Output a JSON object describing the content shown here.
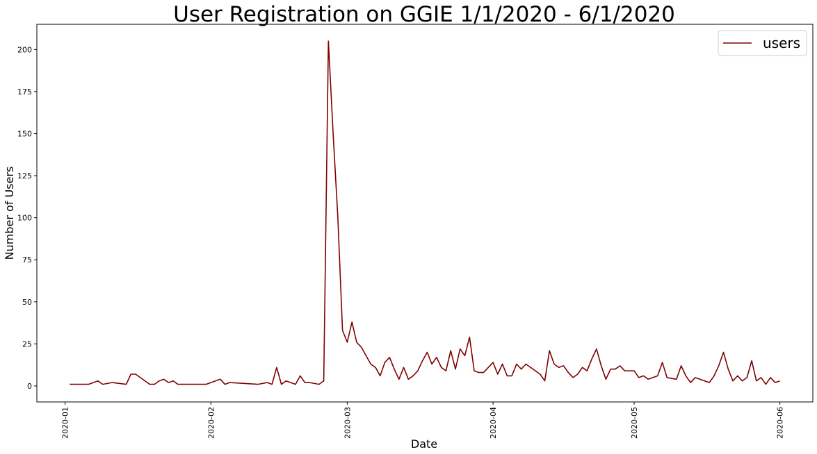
{
  "chart_data": {
    "type": "line",
    "title": "User Registration on GGIE 1/1/2020 - 6/1/2020",
    "xlabel": "Date",
    "ylabel": "Number of Users",
    "xlim": [
      "2019-12-26",
      "2020-06-08"
    ],
    "ylim": [
      -9.5,
      215
    ],
    "x_ticks": [
      "2020-01",
      "2020-02",
      "2020-03",
      "2020-04",
      "2020-05",
      "2020-06"
    ],
    "x_tick_dates": [
      "2020-01-01",
      "2020-02-01",
      "2020-03-01",
      "2020-04-01",
      "2020-05-01",
      "2020-06-01"
    ],
    "y_ticks": [
      0,
      25,
      50,
      75,
      100,
      125,
      150,
      175,
      200
    ],
    "grid": false,
    "legend_position": "top-right",
    "series": [
      {
        "name": "users",
        "color": "#800000",
        "points": [
          [
            "2020-01-02",
            1
          ],
          [
            "2020-01-06",
            1
          ],
          [
            "2020-01-08",
            3
          ],
          [
            "2020-01-09",
            1
          ],
          [
            "2020-01-11",
            2
          ],
          [
            "2020-01-14",
            1
          ],
          [
            "2020-01-15",
            7
          ],
          [
            "2020-01-16",
            7
          ],
          [
            "2020-01-19",
            1
          ],
          [
            "2020-01-20",
            1
          ],
          [
            "2020-01-21",
            3
          ],
          [
            "2020-01-22",
            4
          ],
          [
            "2020-01-23",
            2
          ],
          [
            "2020-01-24",
            3
          ],
          [
            "2020-01-25",
            1
          ],
          [
            "2020-01-31",
            1
          ],
          [
            "2020-02-03",
            4
          ],
          [
            "2020-02-04",
            1
          ],
          [
            "2020-02-05",
            2
          ],
          [
            "2020-02-11",
            1
          ],
          [
            "2020-02-13",
            2
          ],
          [
            "2020-02-14",
            1
          ],
          [
            "2020-02-15",
            11
          ],
          [
            "2020-02-16",
            1
          ],
          [
            "2020-02-17",
            3
          ],
          [
            "2020-02-19",
            1
          ],
          [
            "2020-02-20",
            6
          ],
          [
            "2020-02-21",
            2
          ],
          [
            "2020-02-22",
            2
          ],
          [
            "2020-02-24",
            1
          ],
          [
            "2020-02-25",
            3
          ],
          [
            "2020-02-26",
            205
          ],
          [
            "2020-02-27",
            150
          ],
          [
            "2020-02-28",
            100
          ],
          [
            "2020-02-29",
            33
          ],
          [
            "2020-03-01",
            26
          ],
          [
            "2020-03-02",
            38
          ],
          [
            "2020-03-03",
            26
          ],
          [
            "2020-03-04",
            23
          ],
          [
            "2020-03-06",
            13
          ],
          [
            "2020-03-07",
            11
          ],
          [
            "2020-03-08",
            6
          ],
          [
            "2020-03-09",
            14
          ],
          [
            "2020-03-10",
            17
          ],
          [
            "2020-03-11",
            10
          ],
          [
            "2020-03-12",
            4
          ],
          [
            "2020-03-13",
            11
          ],
          [
            "2020-03-14",
            4
          ],
          [
            "2020-03-15",
            6
          ],
          [
            "2020-03-16",
            9
          ],
          [
            "2020-03-17",
            15
          ],
          [
            "2020-03-18",
            20
          ],
          [
            "2020-03-19",
            13
          ],
          [
            "2020-03-20",
            17
          ],
          [
            "2020-03-21",
            11
          ],
          [
            "2020-03-22",
            9
          ],
          [
            "2020-03-23",
            21
          ],
          [
            "2020-03-24",
            10
          ],
          [
            "2020-03-25",
            22
          ],
          [
            "2020-03-26",
            18
          ],
          [
            "2020-03-27",
            29
          ],
          [
            "2020-03-28",
            9
          ],
          [
            "2020-03-29",
            8
          ],
          [
            "2020-03-30",
            8
          ],
          [
            "2020-04-01",
            14
          ],
          [
            "2020-04-02",
            7
          ],
          [
            "2020-04-03",
            13
          ],
          [
            "2020-04-04",
            6
          ],
          [
            "2020-04-05",
            6
          ],
          [
            "2020-04-06",
            13
          ],
          [
            "2020-04-07",
            10
          ],
          [
            "2020-04-08",
            13
          ],
          [
            "2020-04-11",
            7
          ],
          [
            "2020-04-12",
            3
          ],
          [
            "2020-04-13",
            21
          ],
          [
            "2020-04-14",
            13
          ],
          [
            "2020-04-15",
            11
          ],
          [
            "2020-04-16",
            12
          ],
          [
            "2020-04-17",
            8
          ],
          [
            "2020-04-18",
            5
          ],
          [
            "2020-04-19",
            7
          ],
          [
            "2020-04-20",
            11
          ],
          [
            "2020-04-21",
            9
          ],
          [
            "2020-04-22",
            16
          ],
          [
            "2020-04-23",
            22
          ],
          [
            "2020-04-24",
            12
          ],
          [
            "2020-04-25",
            4
          ],
          [
            "2020-04-26",
            10
          ],
          [
            "2020-04-27",
            10
          ],
          [
            "2020-04-28",
            12
          ],
          [
            "2020-04-29",
            9
          ],
          [
            "2020-05-01",
            9
          ],
          [
            "2020-05-02",
            5
          ],
          [
            "2020-05-03",
            6
          ],
          [
            "2020-05-04",
            4
          ],
          [
            "2020-05-06",
            6
          ],
          [
            "2020-05-07",
            14
          ],
          [
            "2020-05-08",
            5
          ],
          [
            "2020-05-10",
            4
          ],
          [
            "2020-05-11",
            12
          ],
          [
            "2020-05-12",
            6
          ],
          [
            "2020-05-13",
            2
          ],
          [
            "2020-05-14",
            5
          ],
          [
            "2020-05-17",
            2
          ],
          [
            "2020-05-18",
            6
          ],
          [
            "2020-05-19",
            12
          ],
          [
            "2020-05-20",
            20
          ],
          [
            "2020-05-21",
            10
          ],
          [
            "2020-05-22",
            3
          ],
          [
            "2020-05-23",
            6
          ],
          [
            "2020-05-24",
            3
          ],
          [
            "2020-05-25",
            5
          ],
          [
            "2020-05-26",
            15
          ],
          [
            "2020-05-27",
            3
          ],
          [
            "2020-05-28",
            5
          ],
          [
            "2020-05-29",
            1
          ],
          [
            "2020-05-30",
            5
          ],
          [
            "2020-05-31",
            2
          ],
          [
            "2020-06-01",
            3
          ]
        ]
      }
    ]
  }
}
